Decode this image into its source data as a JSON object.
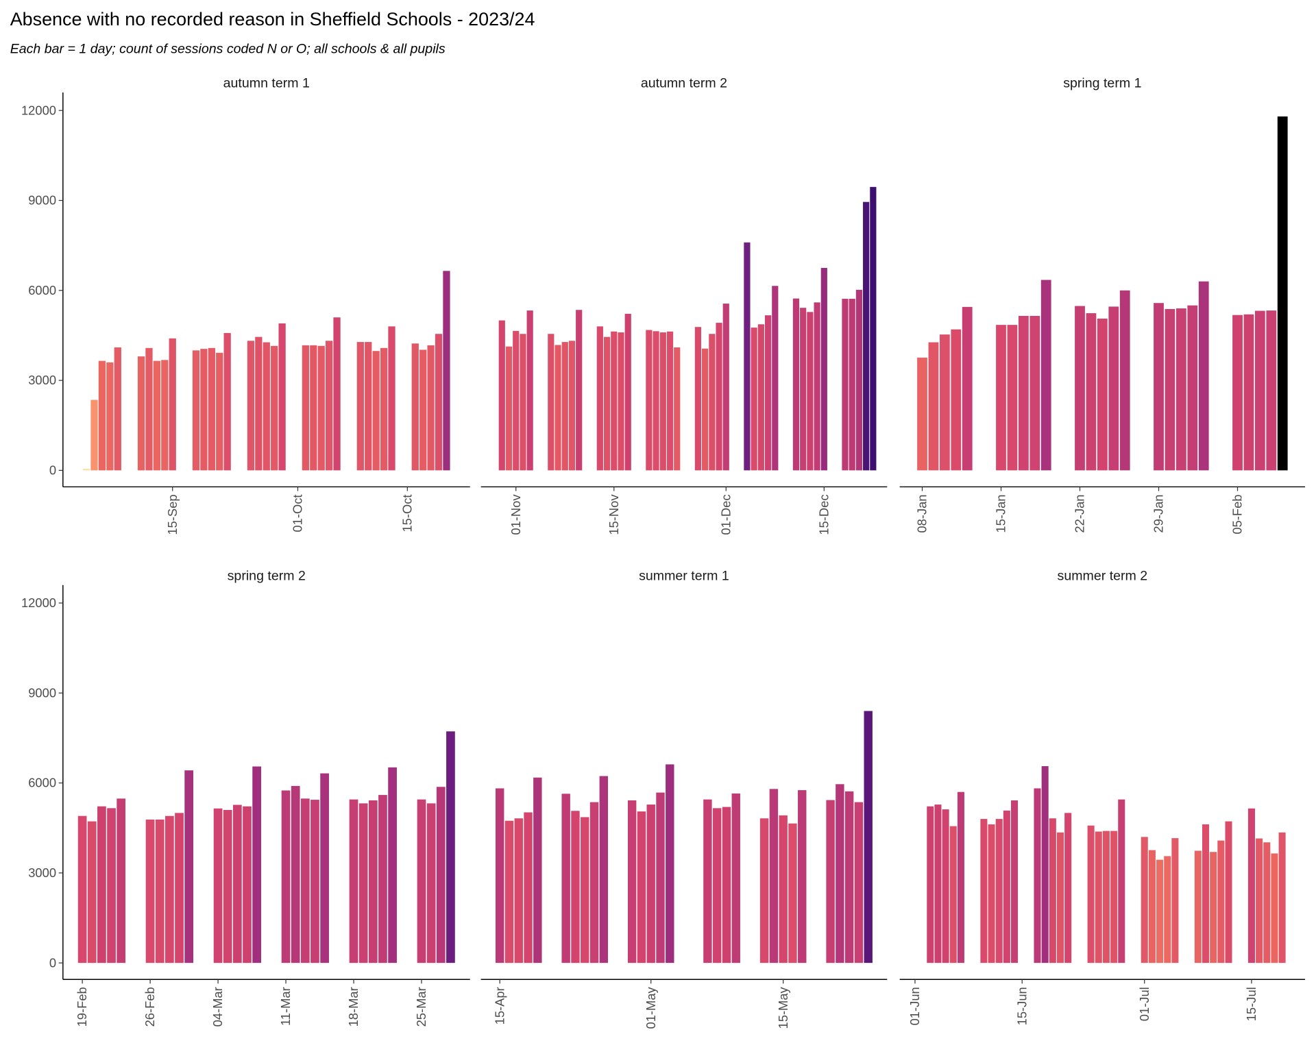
{
  "chart_data": {
    "type": "bar",
    "title": "Absence with no recorded reason in Sheffield Schools - 2023/24",
    "subtitle": "Each bar = 1 day; count of sessions coded N or O; all schools & all pupils",
    "ylim": [
      -550,
      12600
    ],
    "yticks": [
      0,
      3000,
      6000,
      9000,
      12000
    ],
    "fill_scale": {
      "values": [
        0,
        2300,
        3700,
        5000,
        6500,
        7600,
        9500,
        11800
      ],
      "colors": [
        "#fde0a0",
        "#f8956d",
        "#ea6461",
        "#d5446d",
        "#a3307e",
        "#6f1f80",
        "#3b0f70",
        "#000000"
      ]
    },
    "panels": [
      {
        "title": "autumn term 1",
        "xlim": [
          "01-Sep",
          "23-Oct"
        ],
        "xticks": [
          "15-Sep",
          "01-Oct",
          "15-Oct"
        ],
        "x": [
          "04-Sep",
          "05-Sep",
          "06-Sep",
          "07-Sep",
          "08-Sep",
          "11-Sep",
          "12-Sep",
          "13-Sep",
          "14-Sep",
          "15-Sep",
          "18-Sep",
          "19-Sep",
          "20-Sep",
          "21-Sep",
          "22-Sep",
          "25-Sep",
          "26-Sep",
          "27-Sep",
          "28-Sep",
          "29-Sep",
          "02-Oct",
          "03-Oct",
          "04-Oct",
          "05-Oct",
          "06-Oct",
          "09-Oct",
          "10-Oct",
          "11-Oct",
          "12-Oct",
          "13-Oct",
          "16-Oct",
          "17-Oct",
          "18-Oct",
          "19-Oct",
          "20-Oct"
        ],
        "values": [
          50,
          2350,
          3650,
          3600,
          4100,
          3800,
          4080,
          3650,
          3680,
          4400,
          4000,
          4050,
          4080,
          3920,
          4580,
          4320,
          4450,
          4270,
          4150,
          4900,
          4170,
          4170,
          4150,
          4320,
          5100,
          4280,
          4280,
          3980,
          4080,
          4800,
          4230,
          4020,
          4170,
          4550,
          6650
        ]
      },
      {
        "title": "autumn term 2",
        "xlim": [
          "27-Oct",
          "24-Dec"
        ],
        "xticks": [
          "01-Nov",
          "15-Nov",
          "01-Dec",
          "15-Dec"
        ],
        "x": [
          "30-Oct",
          "31-Oct",
          "01-Nov",
          "02-Nov",
          "03-Nov",
          "06-Nov",
          "07-Nov",
          "08-Nov",
          "09-Nov",
          "10-Nov",
          "13-Nov",
          "14-Nov",
          "15-Nov",
          "16-Nov",
          "17-Nov",
          "20-Nov",
          "21-Nov",
          "22-Nov",
          "23-Nov",
          "24-Nov",
          "27-Nov",
          "28-Nov",
          "29-Nov",
          "30-Nov",
          "01-Dec",
          "04-Dec",
          "05-Dec",
          "06-Dec",
          "07-Dec",
          "08-Dec",
          "11-Dec",
          "12-Dec",
          "13-Dec",
          "14-Dec",
          "15-Dec",
          "18-Dec",
          "19-Dec",
          "20-Dec",
          "21-Dec",
          "22-Dec"
        ],
        "values": [
          5000,
          4130,
          4650,
          4550,
          5330,
          4550,
          4180,
          4280,
          4320,
          5350,
          4800,
          4450,
          4630,
          4600,
          5220,
          4680,
          4640,
          4600,
          4630,
          4100,
          4780,
          4060,
          4550,
          4920,
          5560,
          7600,
          4760,
          4870,
          5170,
          6150,
          5730,
          5420,
          5280,
          5600,
          6750,
          5720,
          5720,
          6020,
          8950,
          9450
        ]
      },
      {
        "title": "spring term 1",
        "xlim": [
          "06-Jan",
          "11-Feb"
        ],
        "xticks": [
          "08-Jan",
          "15-Jan",
          "22-Jan",
          "29-Jan",
          "05-Feb"
        ],
        "x": [
          "08-Jan",
          "09-Jan",
          "10-Jan",
          "11-Jan",
          "12-Jan",
          "15-Jan",
          "16-Jan",
          "17-Jan",
          "18-Jan",
          "19-Jan",
          "22-Jan",
          "23-Jan",
          "24-Jan",
          "25-Jan",
          "26-Jan",
          "29-Jan",
          "30-Jan",
          "31-Jan",
          "01-Feb",
          "02-Feb",
          "05-Feb",
          "06-Feb",
          "07-Feb",
          "08-Feb",
          "09-Feb"
        ],
        "values": [
          3760,
          4270,
          4530,
          4700,
          5450,
          4850,
          4850,
          5150,
          5150,
          6350,
          5480,
          5240,
          5060,
          5460,
          6000,
          5580,
          5380,
          5400,
          5500,
          6300,
          5180,
          5200,
          5320,
          5330,
          11800
        ]
      },
      {
        "title": "spring term 2",
        "xlim": [
          "17-Feb",
          "30-Mar"
        ],
        "xticks": [
          "19-Feb",
          "26-Feb",
          "04-Mar",
          "11-Mar",
          "18-Mar",
          "25-Mar"
        ],
        "x": [
          "19-Feb",
          "20-Feb",
          "21-Feb",
          "22-Feb",
          "23-Feb",
          "26-Feb",
          "27-Feb",
          "28-Feb",
          "29-Feb",
          "01-Mar",
          "04-Mar",
          "05-Mar",
          "06-Mar",
          "07-Mar",
          "08-Mar",
          "11-Mar",
          "12-Mar",
          "13-Mar",
          "14-Mar",
          "15-Mar",
          "18-Mar",
          "19-Mar",
          "20-Mar",
          "21-Mar",
          "22-Mar",
          "25-Mar",
          "26-Mar",
          "27-Mar",
          "28-Mar"
        ],
        "values": [
          4900,
          4720,
          5220,
          5160,
          5480,
          4780,
          4780,
          4900,
          5000,
          6420,
          5150,
          5100,
          5270,
          5220,
          6550,
          5750,
          5900,
          5480,
          5440,
          6320,
          5450,
          5320,
          5420,
          5600,
          6520,
          5450,
          5320,
          5870,
          7720
        ]
      },
      {
        "title": "summer term 1",
        "xlim": [
          "13-Apr",
          "26-May"
        ],
        "xticks": [
          "15-Apr",
          "01-May",
          "15-May"
        ],
        "x": [
          "15-Apr",
          "16-Apr",
          "17-Apr",
          "18-Apr",
          "19-Apr",
          "22-Apr",
          "23-Apr",
          "24-Apr",
          "25-Apr",
          "26-Apr",
          "29-Apr",
          "30-Apr",
          "01-May",
          "02-May",
          "03-May",
          "07-May",
          "08-May",
          "09-May",
          "10-May",
          "13-May",
          "14-May",
          "15-May",
          "16-May",
          "17-May",
          "20-May",
          "21-May",
          "22-May",
          "23-May",
          "24-May"
        ],
        "values": [
          5820,
          4740,
          4820,
          5020,
          6180,
          5640,
          5070,
          4860,
          5360,
          6230,
          5420,
          5050,
          5280,
          5680,
          6620,
          5450,
          5160,
          5200,
          5650,
          4820,
          5800,
          4920,
          4650,
          5760,
          5430,
          5960,
          5720,
          5360,
          8400
        ]
      },
      {
        "title": "summer term 2",
        "xlim": [
          "30-May",
          "22-Jul"
        ],
        "xticks": [
          "01-Jun",
          "15-Jun",
          "01-Jul",
          "15-Jul"
        ],
        "x": [
          "03-Jun",
          "04-Jun",
          "05-Jun",
          "06-Jun",
          "07-Jun",
          "10-Jun",
          "11-Jun",
          "12-Jun",
          "13-Jun",
          "14-Jun",
          "17-Jun",
          "18-Jun",
          "19-Jun",
          "20-Jun",
          "21-Jun",
          "24-Jun",
          "25-Jun",
          "26-Jun",
          "27-Jun",
          "28-Jun",
          "01-Jul",
          "02-Jul",
          "03-Jul",
          "04-Jul",
          "05-Jul",
          "08-Jul",
          "09-Jul",
          "10-Jul",
          "11-Jul",
          "12-Jul",
          "15-Jul",
          "16-Jul",
          "17-Jul",
          "18-Jul",
          "19-Jul"
        ],
        "values": [
          5220,
          5280,
          5120,
          4560,
          5700,
          4800,
          4620,
          4800,
          5080,
          5420,
          5820,
          6560,
          4820,
          4350,
          5000,
          4580,
          4380,
          4400,
          4400,
          5450,
          4200,
          3760,
          3440,
          3560,
          4160,
          3740,
          4620,
          3700,
          4080,
          4720,
          5150,
          4150,
          4020,
          3650,
          4350
        ]
      }
    ]
  }
}
